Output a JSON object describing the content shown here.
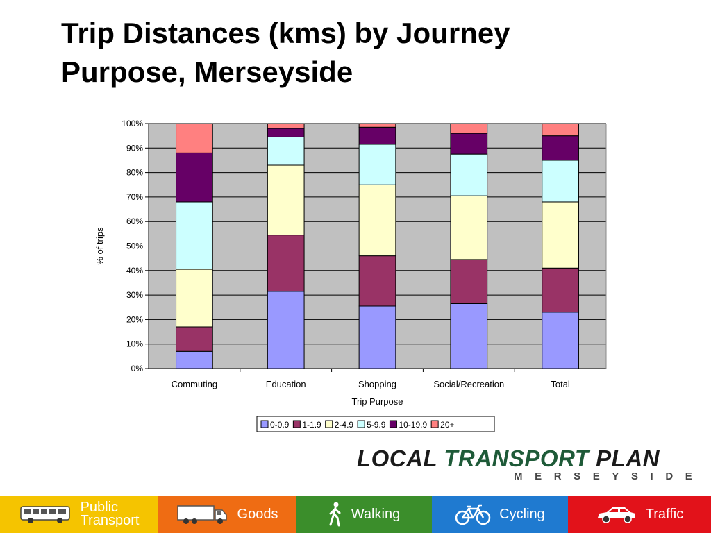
{
  "slide": {
    "title_line1": "Trip Distances (kms) by Journey",
    "title_line2": "Purpose, Merseyside"
  },
  "chart_data": {
    "type": "bar",
    "stacked": true,
    "percent": true,
    "categories": [
      "Commuting",
      "Education",
      "Shopping",
      "Social/Recreation",
      "Total"
    ],
    "series": [
      {
        "name": "0-0.9",
        "color": "#9999ff",
        "values": [
          7,
          31.5,
          25.5,
          26.5,
          23
        ]
      },
      {
        "name": "1-1.9",
        "color": "#993366",
        "values": [
          10,
          23,
          20.5,
          18,
          18
        ]
      },
      {
        "name": "2-4.9",
        "color": "#ffffcc",
        "values": [
          23.5,
          28.5,
          29,
          26,
          27
        ]
      },
      {
        "name": "5-9.9",
        "color": "#ccffff",
        "values": [
          27.5,
          11.5,
          16.5,
          17,
          17
        ]
      },
      {
        "name": "10-19.9",
        "color": "#660066",
        "values": [
          20,
          3.5,
          7,
          8.5,
          10
        ]
      },
      {
        "name": "20+",
        "color": "#ff8080",
        "values": [
          12,
          2,
          1.5,
          4,
          5
        ]
      }
    ],
    "xlabel": "Trip Purpose",
    "ylabel": "% of trips",
    "ylim": [
      0,
      100
    ],
    "yticks": [
      "0%",
      "10%",
      "20%",
      "30%",
      "40%",
      "50%",
      "60%",
      "70%",
      "80%",
      "90%",
      "100%"
    ],
    "grid": true,
    "plot_background": "#c0c0c0",
    "legend_position": "bottom"
  },
  "logo": {
    "word1": "LOCAL",
    "word2": "TRANSPORT",
    "word3": "PLAN",
    "subtitle": "MERSEYSIDE"
  },
  "footer": {
    "items": [
      {
        "line1": "Public",
        "line2": "Transport",
        "icon": "bus-icon",
        "color": "#f5c400"
      },
      {
        "line1": "Goods",
        "line2": "",
        "icon": "truck-icon",
        "color": "#ef6c13"
      },
      {
        "line1": "Walking",
        "line2": "",
        "icon": "walker-icon",
        "color": "#3b8e2b"
      },
      {
        "line1": "Cycling",
        "line2": "",
        "icon": "bicycle-icon",
        "color": "#1f7ad0"
      },
      {
        "line1": "Traffic",
        "line2": "",
        "icon": "car-icon",
        "color": "#e2121a"
      }
    ]
  }
}
